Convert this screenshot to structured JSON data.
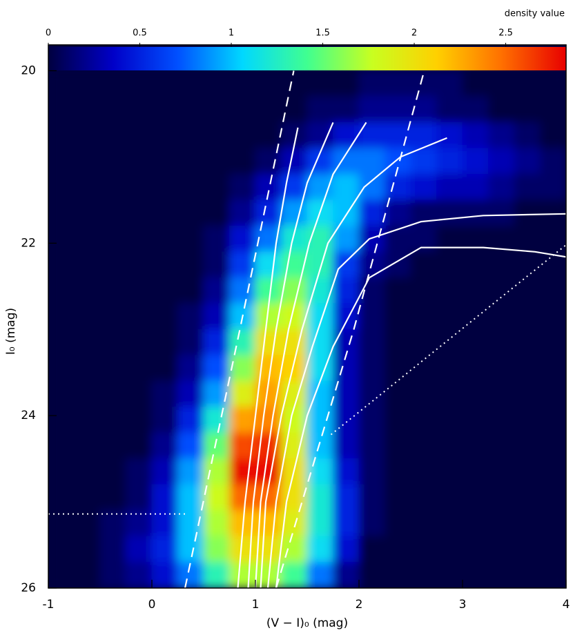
{
  "chart_data": {
    "type": "heatmap",
    "xlabel": "(V − I)₀ (mag)",
    "ylabel": "I₀ (mag)",
    "xlim": [
      -1,
      4
    ],
    "xticks": [
      -1,
      0,
      1,
      2,
      3,
      4
    ],
    "ylim": [
      26,
      19.7
    ],
    "yticks": [
      20,
      22,
      24,
      26
    ],
    "colorbar_label": "density value",
    "clim": [
      0,
      2.83
    ],
    "cticks": [
      0,
      0.5,
      1,
      1.5,
      2,
      2.5
    ],
    "colormap": [
      "#00003f",
      "#0000c8",
      "#0050ff",
      "#00d8ff",
      "#40ff90",
      "#c8ff20",
      "#ffd000",
      "#ff7000",
      "#e80000"
    ],
    "xbins": [
      -1,
      -0.75,
      -0.5,
      -0.25,
      0,
      0.25,
      0.5,
      0.75,
      1,
      1.25,
      1.5,
      1.75,
      2,
      2.25,
      2.5,
      2.75,
      3,
      3.25,
      3.5,
      3.75,
      4
    ],
    "ybins": [
      20,
      20.3,
      20.6,
      20.9,
      21.2,
      21.5,
      21.8,
      22.1,
      22.4,
      22.7,
      23,
      23.3,
      23.6,
      23.9,
      24.2,
      24.5,
      24.8,
      25.1,
      25.4,
      25.7,
      26
    ],
    "density": [
      [
        0,
        0,
        0,
        0,
        0,
        0,
        0,
        0,
        0,
        0,
        0,
        0,
        0.1,
        0.1,
        0.1,
        0.1,
        0,
        0,
        0,
        0
      ],
      [
        0,
        0,
        0,
        0,
        0,
        0,
        0,
        0,
        0,
        0,
        0.1,
        0.1,
        0.2,
        0.2,
        0.2,
        0.1,
        0.1,
        0,
        0,
        0
      ],
      [
        0,
        0,
        0,
        0,
        0,
        0,
        0,
        0,
        0,
        0.1,
        0.2,
        0.4,
        0.5,
        0.5,
        0.5,
        0.4,
        0.3,
        0.2,
        0.1,
        0
      ],
      [
        0,
        0,
        0,
        0,
        0,
        0,
        0,
        0,
        0.1,
        0.3,
        0.6,
        0.8,
        0.8,
        0.7,
        0.6,
        0.5,
        0.4,
        0.3,
        0.2,
        0.1
      ],
      [
        0,
        0,
        0,
        0,
        0,
        0,
        0,
        0.1,
        0.3,
        0.6,
        0.9,
        1.0,
        0.8,
        0.5,
        0.4,
        0.3,
        0.3,
        0.2,
        0.1,
        0.1
      ],
      [
        0,
        0,
        0,
        0,
        0,
        0,
        0,
        0.2,
        0.5,
        0.9,
        1.1,
        1.0,
        0.5,
        0.2,
        0.1,
        0.1,
        0.1,
        0.1,
        0,
        0
      ],
      [
        0,
        0,
        0,
        0,
        0,
        0,
        0.1,
        0.4,
        0.8,
        1.2,
        1.3,
        0.9,
        0.3,
        0.1,
        0.1,
        0,
        0,
        0,
        0,
        0
      ],
      [
        0,
        0,
        0,
        0,
        0,
        0,
        0.1,
        0.6,
        1.1,
        1.4,
        1.3,
        0.6,
        0.2,
        0.1,
        0,
        0,
        0,
        0,
        0,
        0
      ],
      [
        0,
        0,
        0,
        0,
        0,
        0,
        0.2,
        0.8,
        1.4,
        1.6,
        1.2,
        0.5,
        0.1,
        0,
        0,
        0,
        0,
        0,
        0,
        0
      ],
      [
        0,
        0,
        0,
        0,
        0,
        0.1,
        0.3,
        1.0,
        1.7,
        1.8,
        1.1,
        0.4,
        0.1,
        0,
        0,
        0,
        0,
        0,
        0,
        0
      ],
      [
        0,
        0,
        0,
        0,
        0,
        0.1,
        0.5,
        1.3,
        2.0,
        2.0,
        1.1,
        0.3,
        0.1,
        0,
        0,
        0,
        0,
        0,
        0,
        0
      ],
      [
        0,
        0,
        0,
        0,
        0,
        0.2,
        0.7,
        1.6,
        2.2,
        2.1,
        1.1,
        0.3,
        0.1,
        0,
        0,
        0,
        0,
        0,
        0,
        0
      ],
      [
        0,
        0,
        0,
        0,
        0.1,
        0.3,
        0.9,
        1.9,
        2.3,
        1.9,
        1.0,
        0.3,
        0.1,
        0,
        0,
        0,
        0,
        0,
        0,
        0
      ],
      [
        0,
        0,
        0,
        0,
        0.1,
        0.5,
        1.2,
        2.3,
        2.4,
        1.8,
        1.0,
        0.3,
        0.1,
        0,
        0,
        0,
        0,
        0,
        0,
        0
      ],
      [
        0,
        0,
        0,
        0,
        0.2,
        0.7,
        1.5,
        2.6,
        2.7,
        1.9,
        1.0,
        0.3,
        0.1,
        0,
        0,
        0,
        0,
        0,
        0,
        0
      ],
      [
        0,
        0,
        0,
        0.1,
        0.3,
        0.9,
        1.7,
        2.8,
        2.8,
        2.0,
        1.1,
        0.4,
        0.1,
        0,
        0,
        0,
        0,
        0,
        0,
        0
      ],
      [
        0,
        0,
        0,
        0.1,
        0.4,
        1.0,
        1.8,
        2.5,
        2.5,
        2.0,
        1.2,
        0.5,
        0.1,
        0,
        0,
        0,
        0,
        0,
        0,
        0
      ],
      [
        0,
        0,
        0.1,
        0.2,
        0.4,
        1.0,
        1.7,
        2.2,
        2.2,
        1.9,
        1.2,
        0.5,
        0.1,
        0,
        0,
        0,
        0,
        0,
        0,
        0
      ],
      [
        0,
        0,
        0.1,
        0.3,
        0.5,
        1.0,
        1.6,
        2.0,
        2.0,
        1.7,
        1.1,
        0.4,
        0,
        0,
        0,
        0,
        0,
        0,
        0,
        0
      ],
      [
        0,
        0,
        0.1,
        0.2,
        0.4,
        0.8,
        1.3,
        1.7,
        1.7,
        1.4,
        0.8,
        0.2,
        0,
        0,
        0,
        0,
        0,
        0,
        0,
        0
      ]
    ],
    "series": [
      {
        "color": "#ffffff",
        "style": "solid",
        "x": [
          0.83,
          0.9,
          1.0,
          1.1,
          1.2,
          1.3,
          1.41
        ],
        "y": [
          26,
          25,
          24,
          23,
          22,
          21.3,
          20.66
        ]
      },
      {
        "color": "#ffffff",
        "style": "solid",
        "x": [
          0.93,
          0.98,
          1.08,
          1.2,
          1.35,
          1.5,
          1.75
        ],
        "y": [
          26,
          25,
          24,
          23,
          22,
          21.3,
          20.6
        ]
      },
      {
        "color": "#ffffff",
        "style": "solid",
        "x": [
          1.0,
          1.05,
          1.17,
          1.32,
          1.52,
          1.75,
          2.07
        ],
        "y": [
          26,
          25,
          24,
          23,
          22,
          21.2,
          20.6
        ]
      },
      {
        "color": "#ffffff",
        "style": "solid",
        "x": [
          1.05,
          1.1,
          1.25,
          1.45,
          1.7,
          2.05,
          2.4,
          2.85
        ],
        "y": [
          26,
          25,
          24,
          23,
          22,
          21.35,
          21.0,
          20.78
        ]
      },
      {
        "color": "#ffffff",
        "style": "solid",
        "x": [
          1.12,
          1.2,
          1.35,
          1.55,
          1.8,
          2.1,
          2.6,
          3.2,
          4
        ],
        "y": [
          26,
          25,
          24,
          23.2,
          22.3,
          21.95,
          21.75,
          21.68,
          21.66
        ]
      },
      {
        "color": "#ffffff",
        "style": "solid",
        "x": [
          1.2,
          1.3,
          1.5,
          1.75,
          2.1,
          2.6,
          3.2,
          3.7,
          4
        ],
        "y": [
          26,
          25,
          24,
          23.2,
          22.4,
          22.05,
          22.05,
          22.1,
          22.16
        ]
      },
      {
        "color": "#ffffff",
        "style": "dashed",
        "x": [
          0.32,
          0.85,
          1.37
        ],
        "y": [
          26,
          23,
          20
        ]
      },
      {
        "color": "#ffffff",
        "style": "dashed",
        "x": [
          1.2,
          1.95,
          2.63
        ],
        "y": [
          26,
          23,
          20
        ]
      },
      {
        "color": "#ffffff",
        "style": "dotted",
        "x": [
          -1,
          0.35
        ],
        "y": [
          25.14,
          25.14
        ]
      },
      {
        "color": "#ffffff",
        "style": "dotted",
        "x": [
          1.73,
          4
        ],
        "y": [
          24.22,
          22.02
        ]
      }
    ]
  }
}
